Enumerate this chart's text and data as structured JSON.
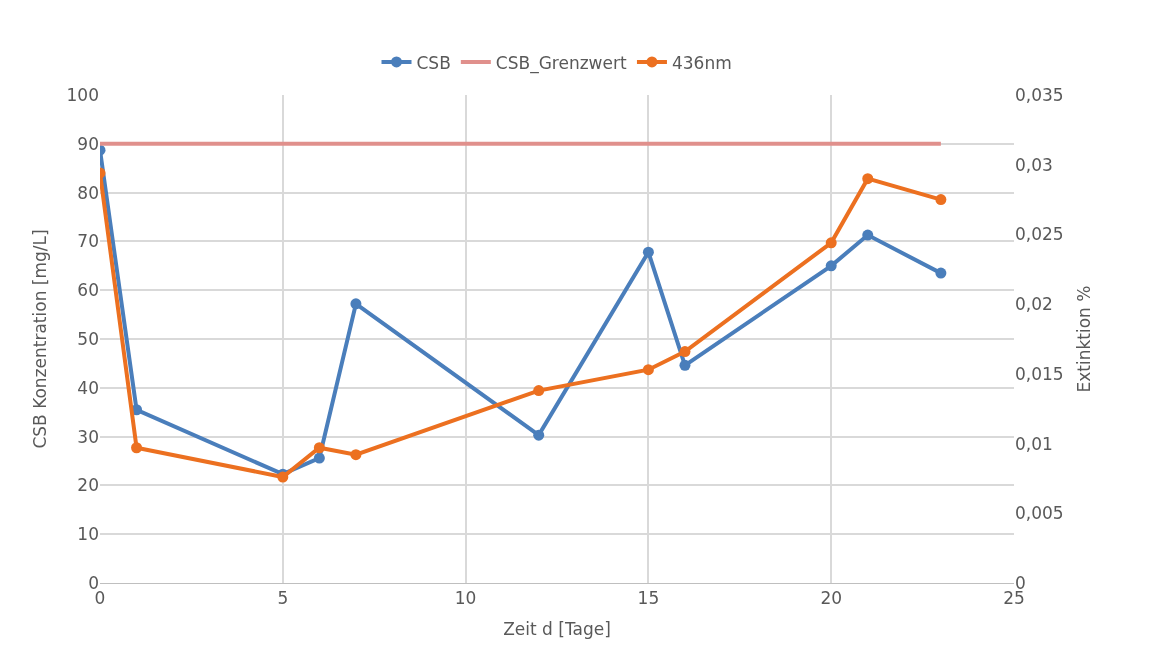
{
  "chart_data": {
    "type": "line",
    "xlabel": "Zeit d [Tage]",
    "ylabel": "CSB Konzentration [mg/L]",
    "y2label": "Extinktion %",
    "x": [
      0,
      1,
      5,
      6,
      7,
      12,
      15,
      16,
      20,
      21,
      23
    ],
    "series": [
      {
        "name": "CSB",
        "color": "#4a7ebb",
        "marker": "circle",
        "values": [
          88.7,
          35.5,
          22.3,
          25.6,
          57.2,
          30.3,
          67.8,
          44.6,
          65,
          71.3,
          63.5
        ]
      },
      {
        "name": "CSB_Grenzwert",
        "color": "#e0908c",
        "marker": "none",
        "x": [
          0,
          23
        ],
        "values": [
          90,
          90
        ]
      },
      {
        "name": "436nm",
        "color": "#ec7020",
        "marker": "circle",
        "axis": "y2",
        "values": [
          0.0294,
          0.0097,
          0.0076,
          0.0097,
          0.0092,
          0.0138,
          0.0153,
          0.0166,
          0.0244,
          0.029,
          0.0275
        ]
      }
    ],
    "xlim": [
      0,
      25
    ],
    "xticks": [
      0,
      5,
      10,
      15,
      20,
      25
    ],
    "ylim": [
      0,
      100
    ],
    "yticks": [
      0,
      10,
      20,
      30,
      40,
      50,
      60,
      70,
      80,
      90,
      100
    ],
    "y2lim": [
      0,
      0.035
    ],
    "y2ticks": [
      {
        "value": 0,
        "label": "0"
      },
      {
        "value": 0.005,
        "label": "0,005"
      },
      {
        "value": 0.01,
        "label": "0,01"
      },
      {
        "value": 0.015,
        "label": "0,015"
      },
      {
        "value": 0.02,
        "label": "0,02"
      },
      {
        "value": 0.025,
        "label": "0,025"
      },
      {
        "value": 0.03,
        "label": "0,03"
      },
      {
        "value": 0.035,
        "label": "0,035"
      }
    ],
    "grid": true,
    "legend": "top"
  }
}
